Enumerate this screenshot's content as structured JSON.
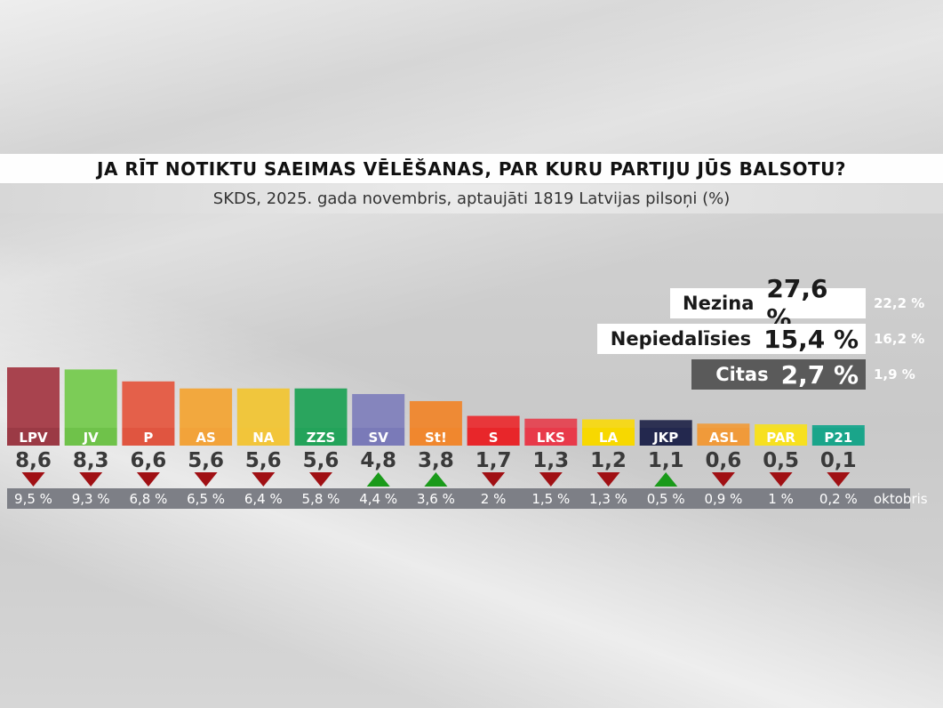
{
  "title": "JA RĪT NOTIKTU SAEIMAS VĒLĒŠANAS, PAR KURU PARTIJU JŪS BALSOTU?",
  "subtitle": "SKDS, 2025. gada novembris, aptaujāti 1819 Latvijas pilsoņi (%)",
  "extras": [
    {
      "label": "Nezina",
      "value": "27,6 %",
      "previous": "22,2 %",
      "style": "white"
    },
    {
      "label": "Nepiedalīsies",
      "value": "15,4 %",
      "previous": "16,2 %",
      "style": "white"
    },
    {
      "label": "Citas",
      "value": "2,7 %",
      "previous": "1,9 %",
      "style": "dark"
    }
  ],
  "previous_label": "oktobris",
  "chart_data": {
    "type": "bar",
    "categories": [
      "LPV",
      "JV",
      "P",
      "AS",
      "NA",
      "ZZS",
      "SV",
      "St!",
      "S",
      "LKS",
      "LA",
      "JKP",
      "ASL",
      "PAR",
      "P21"
    ],
    "values": [
      8.6,
      8.3,
      6.6,
      5.6,
      5.6,
      5.6,
      4.8,
      3.8,
      1.7,
      1.3,
      1.2,
      1.1,
      0.6,
      0.5,
      0.1
    ],
    "value_labels": [
      "8,6",
      "8,3",
      "6,6",
      "5,6",
      "5,6",
      "5,6",
      "4,8",
      "3,8",
      "1,7",
      "1,3",
      "1,2",
      "1,1",
      "0,6",
      "0,5",
      "0,1"
    ],
    "previous_values": [
      9.5,
      9.3,
      6.8,
      6.5,
      6.4,
      5.8,
      4.4,
      3.6,
      2,
      1.5,
      1.3,
      0.5,
      0.9,
      1,
      0.2
    ],
    "previous_labels": [
      "9,5 %",
      "9,3 %",
      "6,8 %",
      "6,5 %",
      "6,4 %",
      "5,8 %",
      "4,4 %",
      "3,6 %",
      "2 %",
      "1,5 %",
      "1,3 %",
      "0,5 %",
      "0,9 %",
      "1 %",
      "0,2 %"
    ],
    "trend": [
      "down",
      "down",
      "down",
      "down",
      "down",
      "down",
      "up",
      "up",
      "down",
      "down",
      "down",
      "up",
      "down",
      "down",
      "down"
    ],
    "colors": [
      "#9b3a45",
      "#6fc24a",
      "#e05540",
      "#f2a33a",
      "#f2c53a",
      "#23a35a",
      "#7a7ab8",
      "#f0872e",
      "#e8262a",
      "#e83a4a",
      "#f7d800",
      "#23284e",
      "#f09a3a",
      "#f7e020",
      "#1aa58a"
    ],
    "bar_colors": [
      "#a8434e",
      "#7ccc57",
      "#e4604a",
      "#f2a83e",
      "#f0c63d",
      "#2aa55e",
      "#8585bd",
      "#ee8a35",
      "#e8373a",
      "#e34b58",
      "#f5d81c",
      "#2d3152",
      "#ee9f44",
      "#f2df2c",
      "#22a890"
    ],
    "label_text_colors": [
      "#ffffff",
      "#ffffff",
      "#ffffff",
      "#ffffff",
      "#ffffff",
      "#ffffff",
      "#ffffff",
      "#ffffff",
      "#ffffff",
      "#ffffff",
      "#ffffff",
      "#ffffff",
      "#ffffff",
      "#ffffff",
      "#ffffff"
    ],
    "ylim": [
      0,
      10
    ]
  }
}
